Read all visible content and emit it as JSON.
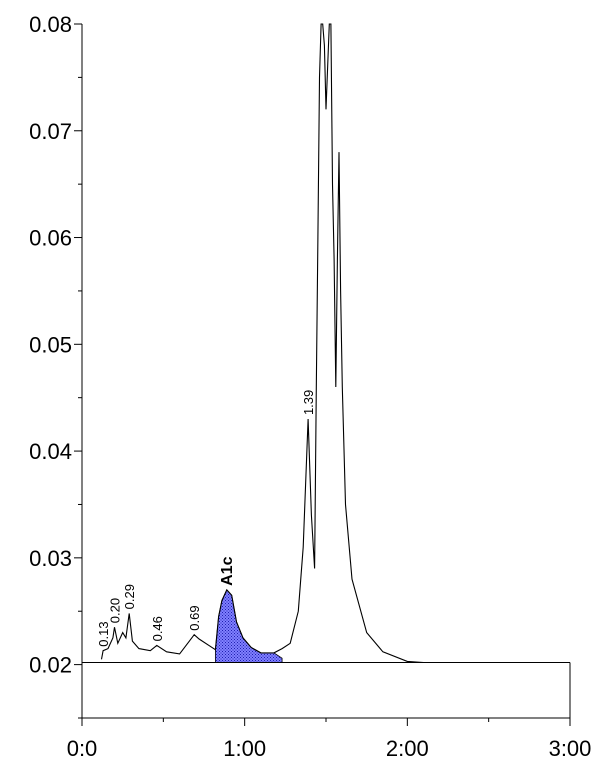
{
  "chart_data": {
    "type": "line",
    "title": "",
    "xlabel": "",
    "ylabel": "",
    "xlim": [
      0,
      3
    ],
    "ylim": [
      0.015,
      0.08
    ],
    "x_major_ticks": [
      0,
      1,
      2,
      3
    ],
    "x_tick_labels": [
      "0:0",
      "1:00",
      "2:00",
      "3:00"
    ],
    "y_major_ticks": [
      0.02,
      0.03,
      0.04,
      0.05,
      0.06,
      0.07,
      0.08
    ],
    "y_tick_labels": [
      "0.02",
      "0.03",
      "0.04",
      "0.05",
      "0.06",
      "0.07",
      "0.08"
    ],
    "grid": false,
    "baseline_y": 0.0202,
    "baseline_x_end": 3.0,
    "series": [
      {
        "color": "#000000",
        "x": [
          0.12,
          0.13,
          0.16,
          0.19,
          0.2,
          0.22,
          0.25,
          0.27,
          0.29,
          0.31,
          0.35,
          0.42,
          0.46,
          0.52,
          0.6,
          0.66,
          0.69,
          0.72,
          0.78,
          0.82,
          0.84,
          0.86,
          0.89,
          0.92,
          0.95,
          0.99,
          1.04,
          1.1,
          1.18,
          1.23,
          1.28,
          1.33,
          1.36,
          1.39,
          1.41,
          1.43,
          1.44,
          1.45,
          1.46,
          1.47,
          1.48,
          1.49,
          1.5,
          1.52,
          1.53,
          1.54,
          1.55,
          1.56,
          1.57,
          1.58,
          1.59,
          1.6,
          1.62,
          1.66,
          1.75,
          1.85,
          2.0,
          2.1,
          2.4,
          2.7,
          3.0
        ],
        "y": [
          0.0205,
          0.0213,
          0.0215,
          0.0225,
          0.0235,
          0.022,
          0.023,
          0.0225,
          0.0248,
          0.0222,
          0.0215,
          0.0213,
          0.0218,
          0.0212,
          0.021,
          0.0222,
          0.0228,
          0.0224,
          0.0218,
          0.0214,
          0.0245,
          0.026,
          0.027,
          0.0265,
          0.024,
          0.0225,
          0.0216,
          0.0211,
          0.0211,
          0.0215,
          0.022,
          0.025,
          0.031,
          0.043,
          0.034,
          0.029,
          0.045,
          0.06,
          0.075,
          0.08,
          0.08,
          0.078,
          0.072,
          0.08,
          0.08,
          0.065,
          0.058,
          0.046,
          0.058,
          0.068,
          0.055,
          0.046,
          0.035,
          0.028,
          0.023,
          0.0212,
          0.0203,
          0.0202,
          0.0202,
          0.0202,
          0.0202
        ]
      }
    ],
    "shaded_peak": {
      "label": "A1c",
      "fill_color": "#8080ff",
      "x": [
        0.82,
        0.84,
        0.86,
        0.89,
        0.92,
        0.95,
        0.99,
        1.04,
        1.1,
        1.18,
        1.23
      ],
      "y": [
        0.0214,
        0.0245,
        0.026,
        0.027,
        0.0265,
        0.024,
        0.0225,
        0.0216,
        0.0211,
        0.0211,
        0.0206
      ]
    },
    "annotations": [
      {
        "text": "0.13",
        "x": 0.13,
        "y": 0.0213
      },
      {
        "text": "0.20",
        "x": 0.2,
        "y": 0.0235
      },
      {
        "text": "0.29",
        "x": 0.29,
        "y": 0.0248
      },
      {
        "text": "0.46",
        "x": 0.46,
        "y": 0.0218
      },
      {
        "text": "0.69",
        "x": 0.69,
        "y": 0.0228
      },
      {
        "text": "A1c",
        "x": 0.89,
        "y": 0.027,
        "bold": true
      },
      {
        "text": "1.39",
        "x": 1.39,
        "y": 0.043
      }
    ]
  }
}
